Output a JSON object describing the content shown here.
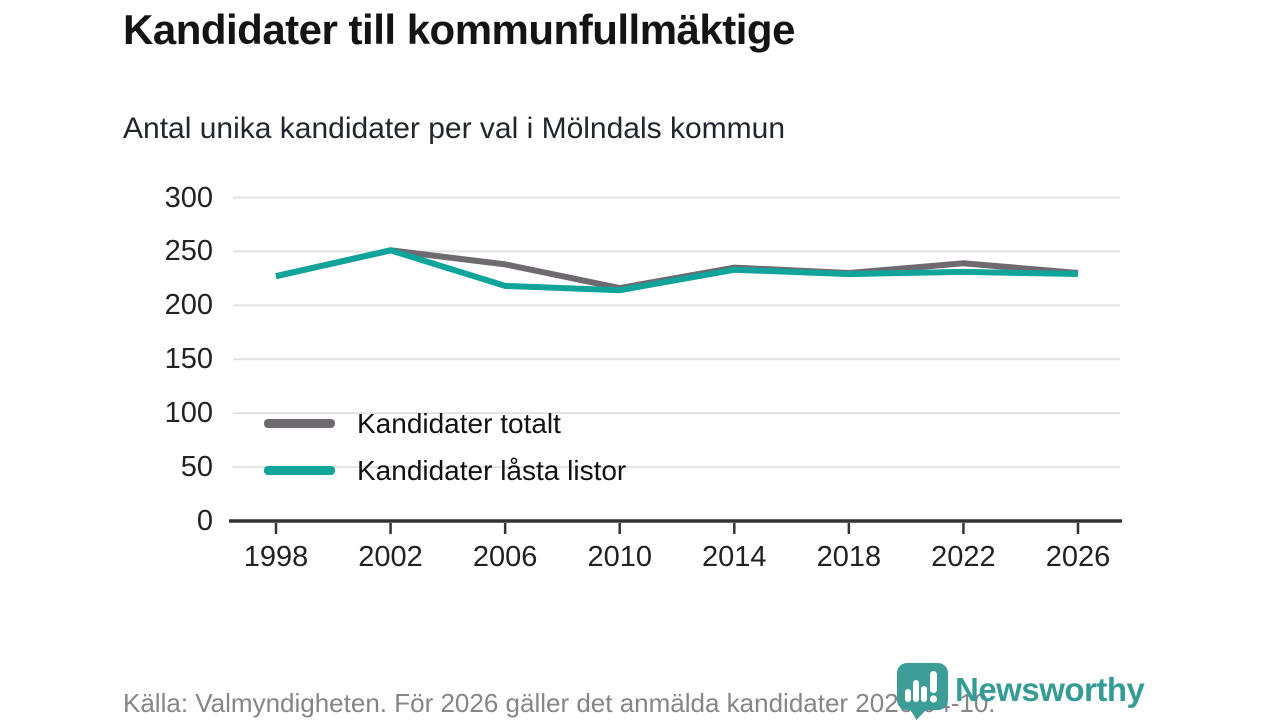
{
  "header": {
    "title": "Kandidater till kommunfullmäktige",
    "subtitle": "Antal unika kandidater per val i Mölndals kommun"
  },
  "chart_data": {
    "type": "line",
    "title": "Kandidater till kommunfullmäktige",
    "subtitle": "Antal unika kandidater per val i Mölndals kommun",
    "xlabel": "",
    "ylabel": "",
    "categories": [
      "1998",
      "2002",
      "2006",
      "2010",
      "2014",
      "2018",
      "2022",
      "2026"
    ],
    "series": [
      {
        "name": "Kandidater totalt",
        "color": "#6e6a70",
        "values": [
          227,
          251,
          238,
          216,
          235,
          230,
          239,
          230
        ]
      },
      {
        "name": "Kandidater låsta listor",
        "color": "#10a49a",
        "values": [
          227,
          251,
          218,
          214,
          233,
          229,
          231,
          229
        ]
      }
    ],
    "ylim": [
      0,
      300
    ],
    "yticks": [
      0,
      50,
      100,
      150,
      200,
      250,
      300
    ],
    "grid": "horizontal gridlines only",
    "legend_position": "inside lower-left"
  },
  "colors": {
    "accent_teal": "#10a49a",
    "series_gray": "#6e6a70",
    "gridline": "#e2e2e2",
    "axis": "#333333",
    "footer_text": "#85858a",
    "logo_marker_teal": "#3d9d97",
    "logo_text_teal": "#359c95"
  },
  "footer": {
    "source_text": "Källa: Valmyndigheten. För 2026 gäller det anmälda kandidater 2026-04-10."
  },
  "logo": {
    "name": "Newsworthy"
  }
}
